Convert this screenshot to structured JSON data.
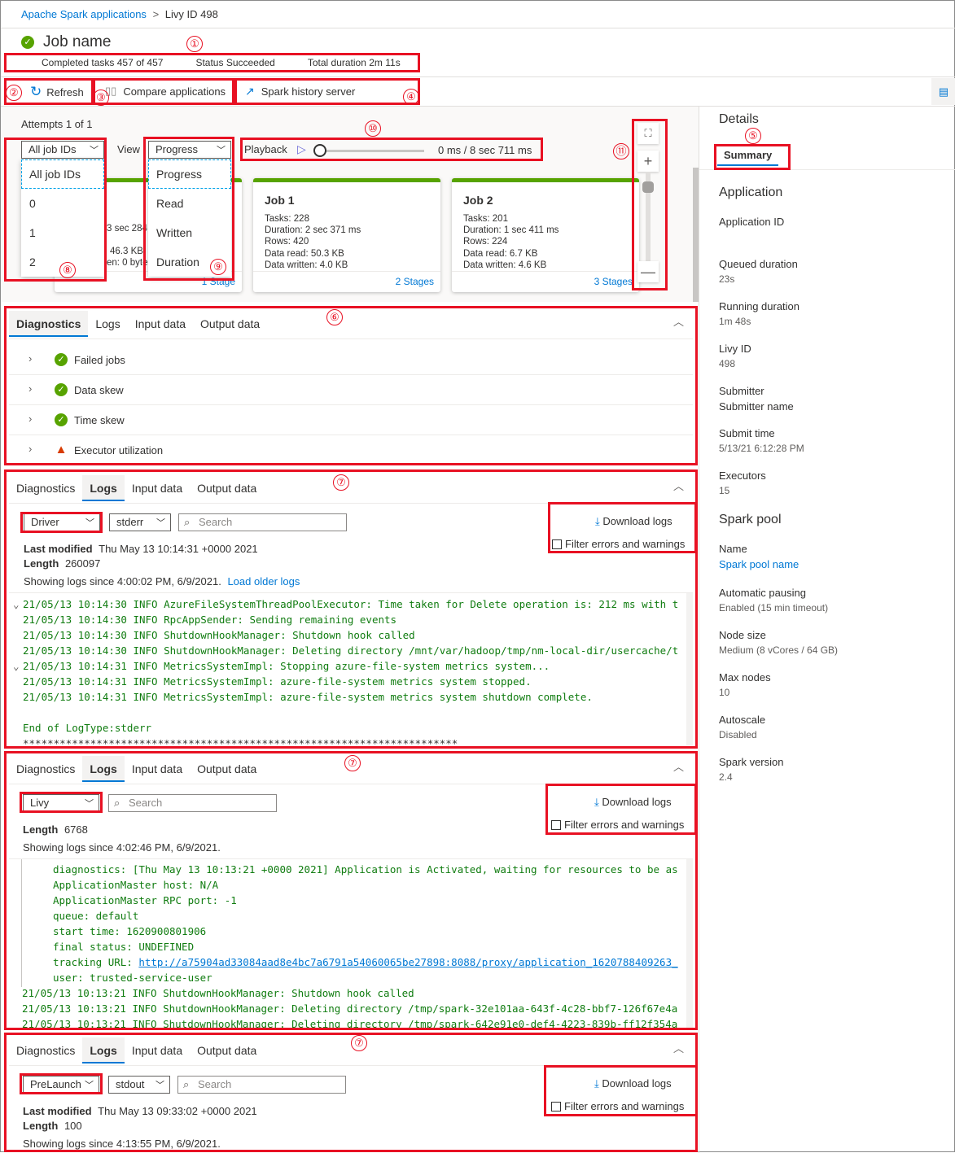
{
  "breadcrumb": {
    "root": "Apache Spark applications",
    "sep": ">",
    "current": "Livy ID 498"
  },
  "header": {
    "title": "Job name",
    "status_icon": "check-circle-icon",
    "completed_label": "Completed tasks",
    "completed_value": "457 of 457",
    "status_label": "Status",
    "status_value": "Succeeded",
    "duration_label": "Total duration",
    "duration_value": "2m 11s"
  },
  "toolbar": {
    "refresh": "Refresh",
    "compare": "Compare applications",
    "history": "Spark history server"
  },
  "annotations": [
    "①",
    "②",
    "③",
    "④",
    "⑤",
    "⑥",
    "⑦",
    "⑧",
    "⑨",
    "⑩",
    "⑪"
  ],
  "graph": {
    "attempts": "Attempts 1 of 1",
    "job_filter": "All job IDs",
    "job_options": [
      "All job IDs",
      "0",
      "1",
      "2"
    ],
    "view_label": "View",
    "view_value": "Progress",
    "view_options": [
      "Progress",
      "Read",
      "Written",
      "Duration"
    ],
    "playback_label": "Playback",
    "playback_time": "0 ms / 8 sec 711 ms",
    "playback_progress": 0,
    "job0_fragments": [
      "3 sec 284",
      "46.3 KB",
      "en: 0 byte"
    ],
    "job0_stages": "1 Stage",
    "jobs": [
      {
        "title": "Job 1",
        "tasks": "Tasks: 228",
        "duration": "Duration: 2 sec 371 ms",
        "rows": "Rows: 420",
        "read": "Data read: 50.3 KB",
        "written": "Data written: 4.0 KB",
        "stages": "2 Stages"
      },
      {
        "title": "Job 2",
        "tasks": "Tasks: 201",
        "duration": "Duration: 1 sec 411 ms",
        "rows": "Rows: 224",
        "read": "Data read: 6.7 KB",
        "written": "Data written: 4.6 KB",
        "stages": "3 Stages"
      }
    ]
  },
  "tabs": [
    "Diagnostics",
    "Logs",
    "Input data",
    "Output data"
  ],
  "diagnostics": [
    {
      "label": "Failed jobs",
      "status": "success"
    },
    {
      "label": "Data skew",
      "status": "success"
    },
    {
      "label": "Time skew",
      "status": "success"
    },
    {
      "label": "Executor utilization",
      "status": "warning"
    }
  ],
  "logs1": {
    "source": "Driver",
    "type": "stderr",
    "search_placeholder": "Search",
    "download": "Download logs",
    "filter": "Filter errors and warnings",
    "modified_label": "Last modified",
    "modified": "Thu May 13 10:14:31 +0000 2021",
    "length_label": "Length",
    "length": "260097",
    "since": "Showing logs since 4:00:02 PM, 6/9/2021.",
    "older": "Load older logs",
    "lines": [
      "21/05/13 10:14:30 INFO AzureFileSystemThreadPoolExecutor: Time taken for Delete operation is: 212 ms with t",
      "21/05/13 10:14:30 INFO RpcAppSender: Sending remaining events",
      "21/05/13 10:14:30 INFO ShutdownHookManager: Shutdown hook called",
      "21/05/13 10:14:30 INFO ShutdownHookManager: Deleting directory /mnt/var/hadoop/tmp/nm-local-dir/usercache/t",
      "21/05/13 10:14:31 INFO MetricsSystemImpl: Stopping azure-file-system metrics system...",
      "21/05/13 10:14:31 INFO MetricsSystemImpl: azure-file-system metrics system stopped.",
      "21/05/13 10:14:31 INFO MetricsSystemImpl: azure-file-system metrics system shutdown complete.",
      "",
      "End of LogType:stderr",
      "***********************************************************************"
    ]
  },
  "logs2": {
    "source": "Livy",
    "search_placeholder": "Search",
    "download": "Download logs",
    "filter": "Filter errors and warnings",
    "length_label": "Length",
    "length": "6768",
    "since": "Showing logs since 4:02:46 PM, 6/9/2021.",
    "lines": [
      "diagnostics: [Thu May 13 10:13:21 +0000 2021] Application is Activated, waiting for resources to be as",
      "ApplicationMaster host: N/A",
      "ApplicationMaster RPC port: -1",
      "queue: default",
      "start time: 1620900801906",
      "final status: UNDEFINED"
    ],
    "url_label": "tracking URL: ",
    "url": "http://a75904ad33084aad8e4bc7a6791a54060065be27898:8088/proxy/application_1620788409263_",
    "user": "user: trusted-service-user",
    "tail": [
      "21/05/13 10:13:21 INFO ShutdownHookManager: Shutdown hook called",
      "21/05/13 10:13:21 INFO ShutdownHookManager: Deleting directory /tmp/spark-32e101aa-643f-4c28-bbf7-126f67e4a",
      "21/05/13 10:13:21 INFO ShutdownHookManager: Deleting directory /tmp/spark-642e91e0-def4-4223-839b-ff12f354a"
    ]
  },
  "logs3": {
    "source": "PreLaunch",
    "type": "stdout",
    "search_placeholder": "Search",
    "download": "Download logs",
    "filter": "Filter errors and warnings",
    "modified_label": "Last modified",
    "modified": "Thu May 13 09:33:02 +0000 2021",
    "length_label": "Length",
    "length": "100",
    "since": "Showing logs since 4:13:55 PM, 6/9/2021."
  },
  "details": {
    "title": "Details",
    "tab": "Summary",
    "app_heading": "Application",
    "fields": [
      {
        "k": "Application ID",
        "v": ""
      },
      {
        "k": "Queued duration",
        "v": "23s"
      },
      {
        "k": "Running duration",
        "v": "1m 48s"
      },
      {
        "k": "Livy ID",
        "v": "498"
      },
      {
        "k": "Submitter",
        "v": "Submitter name"
      },
      {
        "k": "Submit time",
        "v": "5/13/21 6:12:28 PM"
      },
      {
        "k": "Executors",
        "v": "15"
      }
    ],
    "pool_heading": "Spark pool",
    "pool_fields": [
      {
        "k": "Name",
        "v": "Spark pool name"
      },
      {
        "k": "Automatic pausing",
        "v": "Enabled (15 min timeout)"
      },
      {
        "k": "Node size",
        "v": "Medium (8 vCores / 64 GB)"
      },
      {
        "k": "Max nodes",
        "v": "10"
      },
      {
        "k": "Autoscale",
        "v": "Disabled"
      },
      {
        "k": "Spark version",
        "v": "2.4"
      }
    ]
  },
  "colors": {
    "accent": "#0078d4",
    "success": "#57a300",
    "warning": "#d83b01",
    "annotation": "#e81123",
    "log_text": "#107c10"
  }
}
